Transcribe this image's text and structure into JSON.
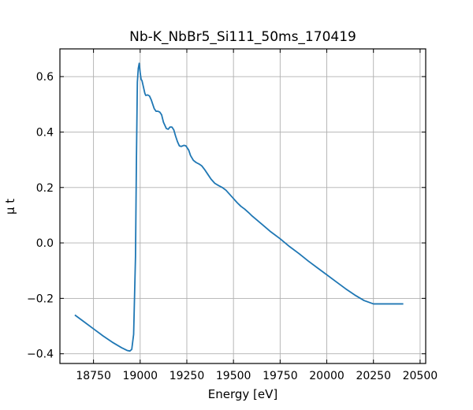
{
  "chart_data": {
    "type": "line",
    "title": "Nb-K_NbBr5_Si111_50ms_170419",
    "xlabel": "Energy [eV]",
    "ylabel": "μ t",
    "xlim": [
      18570,
      20530
    ],
    "ylim": [
      -0.435,
      0.7
    ],
    "xticks": [
      18750,
      19000,
      19250,
      19500,
      19750,
      20000,
      20250,
      20500
    ],
    "xtick_labels": [
      "18750",
      "19000",
      "19250",
      "19500",
      "19750",
      "20000",
      "20250",
      "20500"
    ],
    "yticks": [
      -0.4,
      -0.2,
      0.0,
      0.2,
      0.4,
      0.6
    ],
    "ytick_labels": [
      "−0.4",
      "−0.2",
      "0.0",
      "0.2",
      "0.4",
      "0.6"
    ],
    "grid": true,
    "tick_direction": "in",
    "series": [
      {
        "color": "#1f77b4",
        "x": [
          18650,
          18700,
          18750,
          18800,
          18850,
          18900,
          18930,
          18945,
          18955,
          18965,
          18975,
          18980,
          18985,
          18990,
          18995,
          19000,
          19005,
          19010,
          19015,
          19020,
          19025,
          19030,
          19040,
          19050,
          19060,
          19075,
          19085,
          19095,
          19105,
          19115,
          19125,
          19140,
          19150,
          19160,
          19170,
          19180,
          19190,
          19200,
          19210,
          19220,
          19235,
          19245,
          19260,
          19270,
          19285,
          19300,
          19315,
          19330,
          19345,
          19360,
          19380,
          19400,
          19420,
          19440,
          19460,
          19480,
          19500,
          19520,
          19540,
          19560,
          19580,
          19600,
          19630,
          19660,
          19700,
          19750,
          19800,
          19850,
          19900,
          19950,
          20000,
          20050,
          20100,
          20150,
          20200,
          20250,
          20300,
          20350,
          20400,
          20410
        ],
        "y": [
          -0.26,
          -0.285,
          -0.31,
          -0.335,
          -0.358,
          -0.378,
          -0.388,
          -0.39,
          -0.384,
          -0.33,
          -0.05,
          0.3,
          0.58,
          0.63,
          0.648,
          0.615,
          0.59,
          0.585,
          0.57,
          0.555,
          0.54,
          0.532,
          0.534,
          0.53,
          0.515,
          0.485,
          0.475,
          0.475,
          0.472,
          0.462,
          0.435,
          0.413,
          0.41,
          0.418,
          0.418,
          0.408,
          0.385,
          0.365,
          0.35,
          0.348,
          0.352,
          0.35,
          0.335,
          0.315,
          0.298,
          0.29,
          0.285,
          0.278,
          0.265,
          0.25,
          0.23,
          0.215,
          0.207,
          0.2,
          0.19,
          0.175,
          0.16,
          0.145,
          0.132,
          0.122,
          0.11,
          0.097,
          0.08,
          0.063,
          0.04,
          0.015,
          -0.013,
          -0.038,
          -0.065,
          -0.09,
          -0.115,
          -0.14,
          -0.165,
          -0.188,
          -0.208,
          -0.22,
          -0.22,
          -0.22,
          -0.22,
          -0.22
        ]
      }
    ]
  }
}
